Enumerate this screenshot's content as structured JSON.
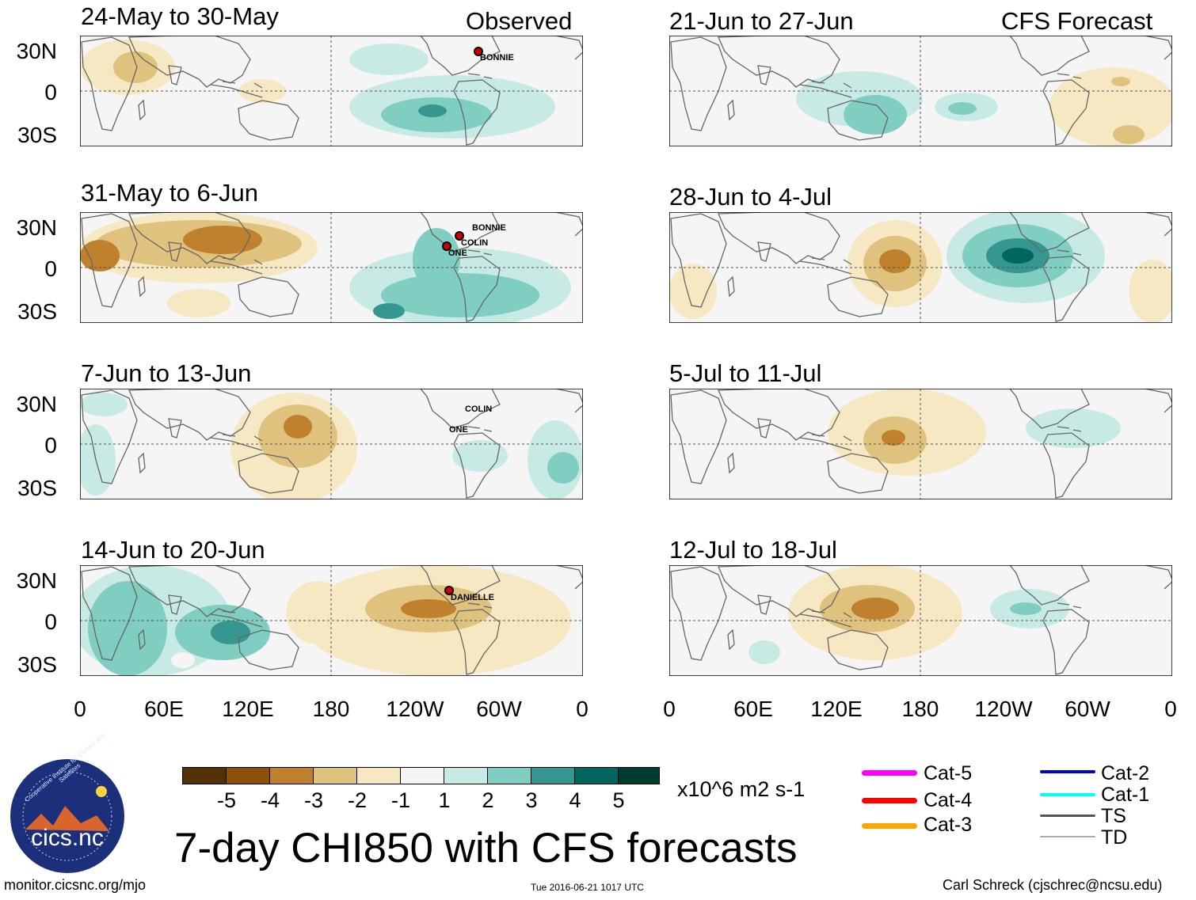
{
  "columns": {
    "left_title": "Observed",
    "right_title": "CFS Forecast"
  },
  "panels": [
    {
      "title": "24-May to 30-May",
      "storms": [
        "BONNIE"
      ]
    },
    {
      "title": "31-May to 6-Jun",
      "storms": [
        "BONNIE",
        "COLIN",
        "ONE"
      ]
    },
    {
      "title": "7-Jun to 13-Jun",
      "storms": [
        "COLIN",
        "ONE"
      ]
    },
    {
      "title": "14-Jun to 20-Jun",
      "storms": [
        "DANIELLE"
      ]
    },
    {
      "title": "21-Jun to 27-Jun",
      "storms": []
    },
    {
      "title": "28-Jun to 4-Jul",
      "storms": []
    },
    {
      "title": "5-Jul to 11-Jul",
      "storms": []
    },
    {
      "title": "12-Jul to 18-Jul",
      "storms": []
    }
  ],
  "lat_labels": [
    "30N",
    "0",
    "30S"
  ],
  "lon_labels": [
    "0",
    "60E",
    "120E",
    "180",
    "120W",
    "60W",
    "0"
  ],
  "colorbar": {
    "ticks": [
      "-5",
      "-4",
      "-3",
      "-2",
      "-1",
      "1",
      "2",
      "3",
      "4",
      "5"
    ],
    "colors": [
      "#543005",
      "#8c510a",
      "#bf812d",
      "#dfc27d",
      "#f6e8c3",
      "#f5f5f5",
      "#c7eae5",
      "#80cdc1",
      "#35978f",
      "#01665e",
      "#003c30"
    ],
    "units": "x10^6 m2 s-1"
  },
  "legend": [
    {
      "label": "Cat-5",
      "color": "#ff00ff"
    },
    {
      "label": "Cat-4",
      "color": "#ff0000"
    },
    {
      "label": "Cat-3",
      "color": "#ffa500"
    },
    {
      "label": "Cat-2",
      "color": "#0000cc"
    },
    {
      "label": "Cat-1",
      "color": "#00ffff"
    },
    {
      "label": "TS",
      "color": "#555555"
    },
    {
      "label": "TD",
      "color": "#aaaaaa"
    }
  ],
  "logo_text": "cics.nc",
  "logo_ring_text": "Cooperative Institute for Climate and Satellites",
  "main_title": "7-day CHI850 with CFS forecasts",
  "footer": {
    "left": "monitor.cicsnc.org/mjo",
    "center": "Tue 2016-06-21 1017 UTC",
    "right": "Carl Schreck (cjschrec@ncsu.edu)"
  }
}
